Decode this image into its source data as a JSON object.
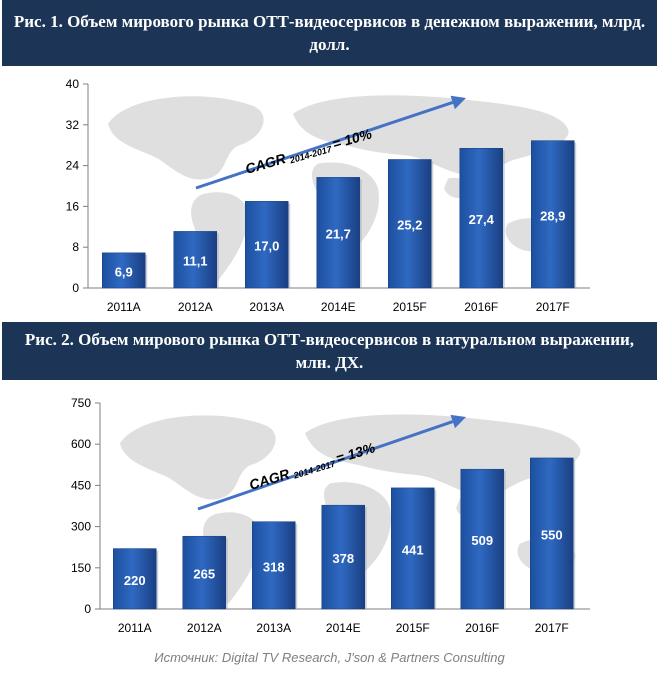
{
  "source": "Источник: Digital TV Research, J'son & Partners Consulting",
  "colors": {
    "header_bg": "#1c3557",
    "bar": "#2f69c2",
    "arrow": "#4472c4",
    "map": "#d9d9d9"
  },
  "chart_data": [
    {
      "type": "bar",
      "title": "Рис. 1. Объем мирового рынка ОТТ-видеосервисов в денежном выражении, млрд. долл.",
      "categories": [
        "2011A",
        "2012A",
        "2013A",
        "2014E",
        "2015F",
        "2016F",
        "2017F"
      ],
      "values": [
        6.9,
        11.1,
        17.0,
        21.7,
        25.2,
        27.4,
        28.9
      ],
      "value_labels": [
        "6,9",
        "11,1",
        "17,0",
        "21,7",
        "25,2",
        "27,4",
        "28,9"
      ],
      "yticks": [
        "0",
        "8",
        "16",
        "24",
        "32",
        "40"
      ],
      "ylim": [
        0,
        40
      ],
      "annotation": {
        "prefix": "CAGR",
        "sub": "2014-2017",
        "suffix": "= 10%"
      }
    },
    {
      "type": "bar",
      "title": "Рис. 2. Объем мирового рынка ОТТ-видеосервисов в натуральном выражении, млн. ДХ.",
      "categories": [
        "2011A",
        "2012A",
        "2013A",
        "2014E",
        "2015F",
        "2016F",
        "2017F"
      ],
      "values": [
        220,
        265,
        318,
        378,
        441,
        509,
        550
      ],
      "value_labels": [
        "220",
        "265",
        "318",
        "378",
        "441",
        "509",
        "550"
      ],
      "yticks": [
        "0",
        "150",
        "300",
        "450",
        "600",
        "750"
      ],
      "ylim": [
        0,
        750
      ],
      "annotation": {
        "prefix": "CAGR",
        "sub": "2014-2017",
        "suffix": "= 13%"
      }
    }
  ]
}
